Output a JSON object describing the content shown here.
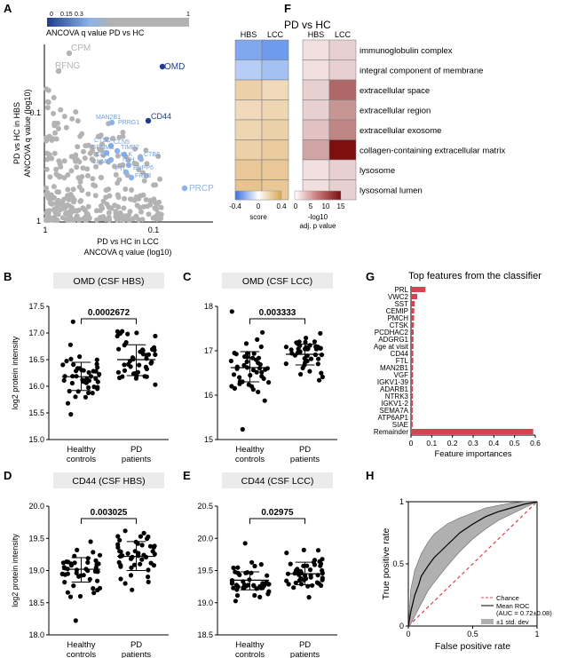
{
  "panel_labels": {
    "A": "A",
    "B": "B",
    "C": "C",
    "D": "D",
    "E": "E",
    "F": "F",
    "G": "G",
    "H": "H"
  },
  "colors": {
    "blue_dark": "#1f3d8c",
    "blue_light": "#8cb2e8",
    "grey": "#b3b3b3",
    "red": "#d9434f",
    "heat_blue": "#8fb3f0",
    "heat_tan": "#f0d8b0",
    "heat_red": "#8a1f1f"
  },
  "panelA": {
    "colorbar_ticks": [
      "0",
      "0.15",
      "0.3",
      "1"
    ],
    "colorbar_title": "ANCOVA q value PD vs HC",
    "ylabel1": "PD vs HC in HBS",
    "ylabel2": "ANCOVA q value (log10)",
    "xlabel1": "PD vs HC in LCC",
    "xlabel2": "ANCOVA q value (log10)",
    "yticks": [
      "0.1",
      "1"
    ],
    "xticks": [
      "1",
      "0.1"
    ],
    "labels": {
      "CPM": "CPM",
      "RFNG": "RFNG",
      "OMD": "OMD",
      "MAN2B1": "MAN2B1",
      "PRRG1": "PRRG1",
      "CD44": "CD44",
      "CTSD": "CTSD",
      "CLN5": "CLN5",
      "TIMP2": "TIMP2",
      "GPNMB": "GPNMB",
      "CCN": "CCN",
      "KLK": "KLK",
      "LNME": "LNME",
      "ITIH": "ITIH",
      "CTBS": "CTBS",
      "FTL": "FTL",
      "ENPP6": "ENPP6",
      "FRZB": "FRZB",
      "PRCP": "PRCP"
    }
  },
  "chart_data": [
    {
      "type": "scatter",
      "panel": "B",
      "title": "OMD (CSF HBS)",
      "ylabel": "log2 protein intensity",
      "categories": [
        "Healthy controls",
        "PD patients"
      ],
      "ylim": [
        15.0,
        17.5
      ],
      "yticks": [
        "15.0",
        "15.5",
        "16.0",
        "16.5",
        "17.0",
        "17.5"
      ],
      "pvalue": "0.0002672",
      "means": [
        16.18,
        16.5
      ],
      "sd_lower": [
        15.92,
        16.2
      ],
      "sd_upper": [
        16.45,
        16.78
      ]
    },
    {
      "type": "scatter",
      "panel": "C",
      "title": "OMD (CSF LCC)",
      "ylabel": "",
      "categories": [
        "Healthy controls",
        "PD patients"
      ],
      "ylim": [
        15,
        18
      ],
      "yticks": [
        "15",
        "16",
        "17",
        "18"
      ],
      "pvalue": "0.003333",
      "means": [
        16.62,
        16.92
      ],
      "sd_lower": [
        16.3,
        16.68
      ],
      "sd_upper": [
        16.98,
        17.15
      ]
    },
    {
      "type": "scatter",
      "panel": "D",
      "title": "CD44 (CSF HBS)",
      "ylabel": "log2 protein intensity",
      "categories": [
        "Healthy controls",
        "PD patients"
      ],
      "ylim": [
        18.0,
        20.0
      ],
      "yticks": [
        "18.0",
        "18.5",
        "19.0",
        "19.5",
        "20.0"
      ],
      "pvalue": "0.003025",
      "means": [
        19.02,
        19.22
      ],
      "sd_lower": [
        18.82,
        19.0
      ],
      "sd_upper": [
        19.2,
        19.45
      ]
    },
    {
      "type": "scatter",
      "panel": "E",
      "title": "CD44 (CSF LCC)",
      "ylabel": "",
      "categories": [
        "Healthy controls",
        "PD patients"
      ],
      "ylim": [
        18.5,
        20.5
      ],
      "yticks": [
        "18.5",
        "19.0",
        "19.5",
        "20.0",
        "20.5"
      ],
      "pvalue": "0.02975",
      "means": [
        19.35,
        19.45
      ],
      "sd_lower": [
        19.2,
        19.28
      ],
      "sd_upper": [
        19.48,
        19.63
      ]
    },
    {
      "type": "heatmap",
      "panel": "F",
      "title": "PD vs HC",
      "score_columns": [
        "HBS",
        "LCC"
      ],
      "pval_columns": [
        "HBS",
        "LCC"
      ],
      "rows": [
        "immunoglobulin complex",
        "integral component of membrane",
        "extracellular space",
        "extracellular region",
        "extracellular exosome",
        "collagen-containing extracellular matrix",
        "lysosome",
        "lysosomal lumen"
      ],
      "score_values": [
        [
          -0.35,
          -0.4
        ],
        [
          -0.2,
          -0.25
        ],
        [
          0.25,
          0.2
        ],
        [
          0.2,
          0.22
        ],
        [
          0.22,
          0.25
        ],
        [
          0.25,
          0.28
        ],
        [
          0.3,
          0.3
        ],
        [
          0.32,
          0.3
        ]
      ],
      "pval_values": [
        [
          1,
          2
        ],
        [
          1,
          2
        ],
        [
          2,
          9
        ],
        [
          2,
          6
        ],
        [
          3,
          7
        ],
        [
          5,
          15
        ],
        [
          1,
          2
        ],
        [
          1,
          2
        ]
      ],
      "score_legend_ticks": [
        "-0.4",
        "0",
        "0.4"
      ],
      "score_legend_label": "score",
      "pval_legend_ticks": [
        "0",
        "5",
        "10",
        "15"
      ],
      "pval_legend_label1": "-log10",
      "pval_legend_label2": "adj. p value"
    },
    {
      "type": "bar",
      "panel": "G",
      "title": "Top features from the classifier",
      "orientation": "horizontal",
      "categories": [
        "PRL",
        "VWC2",
        "SST",
        "CEMIP",
        "PMCH",
        "CTSK",
        "PCDHAC2",
        "ADGRG1",
        "Age at visit",
        "CD44",
        "FTL",
        "MAN2B1",
        "VGF",
        "IGKV1-39",
        "ADARB1",
        "NTRK3",
        "IGKV1-2",
        "SEMA7A",
        "ATP6AP1",
        "SIAE",
        "Remainder"
      ],
      "values": [
        0.07,
        0.03,
        0.018,
        0.016,
        0.015,
        0.014,
        0.013,
        0.012,
        0.012,
        0.011,
        0.011,
        0.01,
        0.01,
        0.01,
        0.009,
        0.009,
        0.009,
        0.008,
        0.008,
        0.008,
        0.59
      ],
      "xlabel": "Feature importances",
      "xlim": [
        0,
        0.6
      ],
      "xticks": [
        "0",
        "0.1",
        "0.2",
        "0.3",
        "0.4",
        "0.5",
        "0.6"
      ]
    },
    {
      "type": "line",
      "panel": "H",
      "xlabel": "False positive rate",
      "ylabel": "True positive rate",
      "xlim": [
        0,
        1
      ],
      "ylim": [
        0,
        1
      ],
      "xticks": [
        "0",
        "0.5",
        "1"
      ],
      "yticks": [
        "0",
        "0.5",
        "1"
      ],
      "legend": [
        "Chance",
        "Mean ROC",
        "(AUC = 0.72±0.08)",
        "±1 std. dev"
      ],
      "series": [
        {
          "name": "Mean ROC",
          "x": [
            0,
            0.02,
            0.05,
            0.08,
            0.1,
            0.15,
            0.2,
            0.25,
            0.3,
            0.35,
            0.4,
            0.5,
            0.6,
            0.7,
            0.8,
            0.9,
            1
          ],
          "y": [
            0,
            0.12,
            0.25,
            0.33,
            0.4,
            0.48,
            0.55,
            0.6,
            0.65,
            0.7,
            0.75,
            0.82,
            0.88,
            0.92,
            0.95,
            0.98,
            1
          ]
        },
        {
          "name": "upper",
          "x": [
            0,
            0.02,
            0.05,
            0.1,
            0.15,
            0.2,
            0.3,
            0.4,
            0.5,
            0.6,
            0.7,
            0.8,
            0.9,
            1
          ],
          "y": [
            0,
            0.3,
            0.45,
            0.58,
            0.67,
            0.74,
            0.82,
            0.87,
            0.91,
            0.95,
            0.97,
            0.99,
            1,
            1
          ]
        },
        {
          "name": "lower",
          "x": [
            0,
            0.02,
            0.05,
            0.1,
            0.15,
            0.2,
            0.3,
            0.4,
            0.5,
            0.6,
            0.7,
            0.8,
            0.9,
            1
          ],
          "y": [
            0,
            0.02,
            0.08,
            0.18,
            0.28,
            0.35,
            0.48,
            0.6,
            0.7,
            0.78,
            0.85,
            0.9,
            0.95,
            1
          ]
        }
      ]
    }
  ]
}
